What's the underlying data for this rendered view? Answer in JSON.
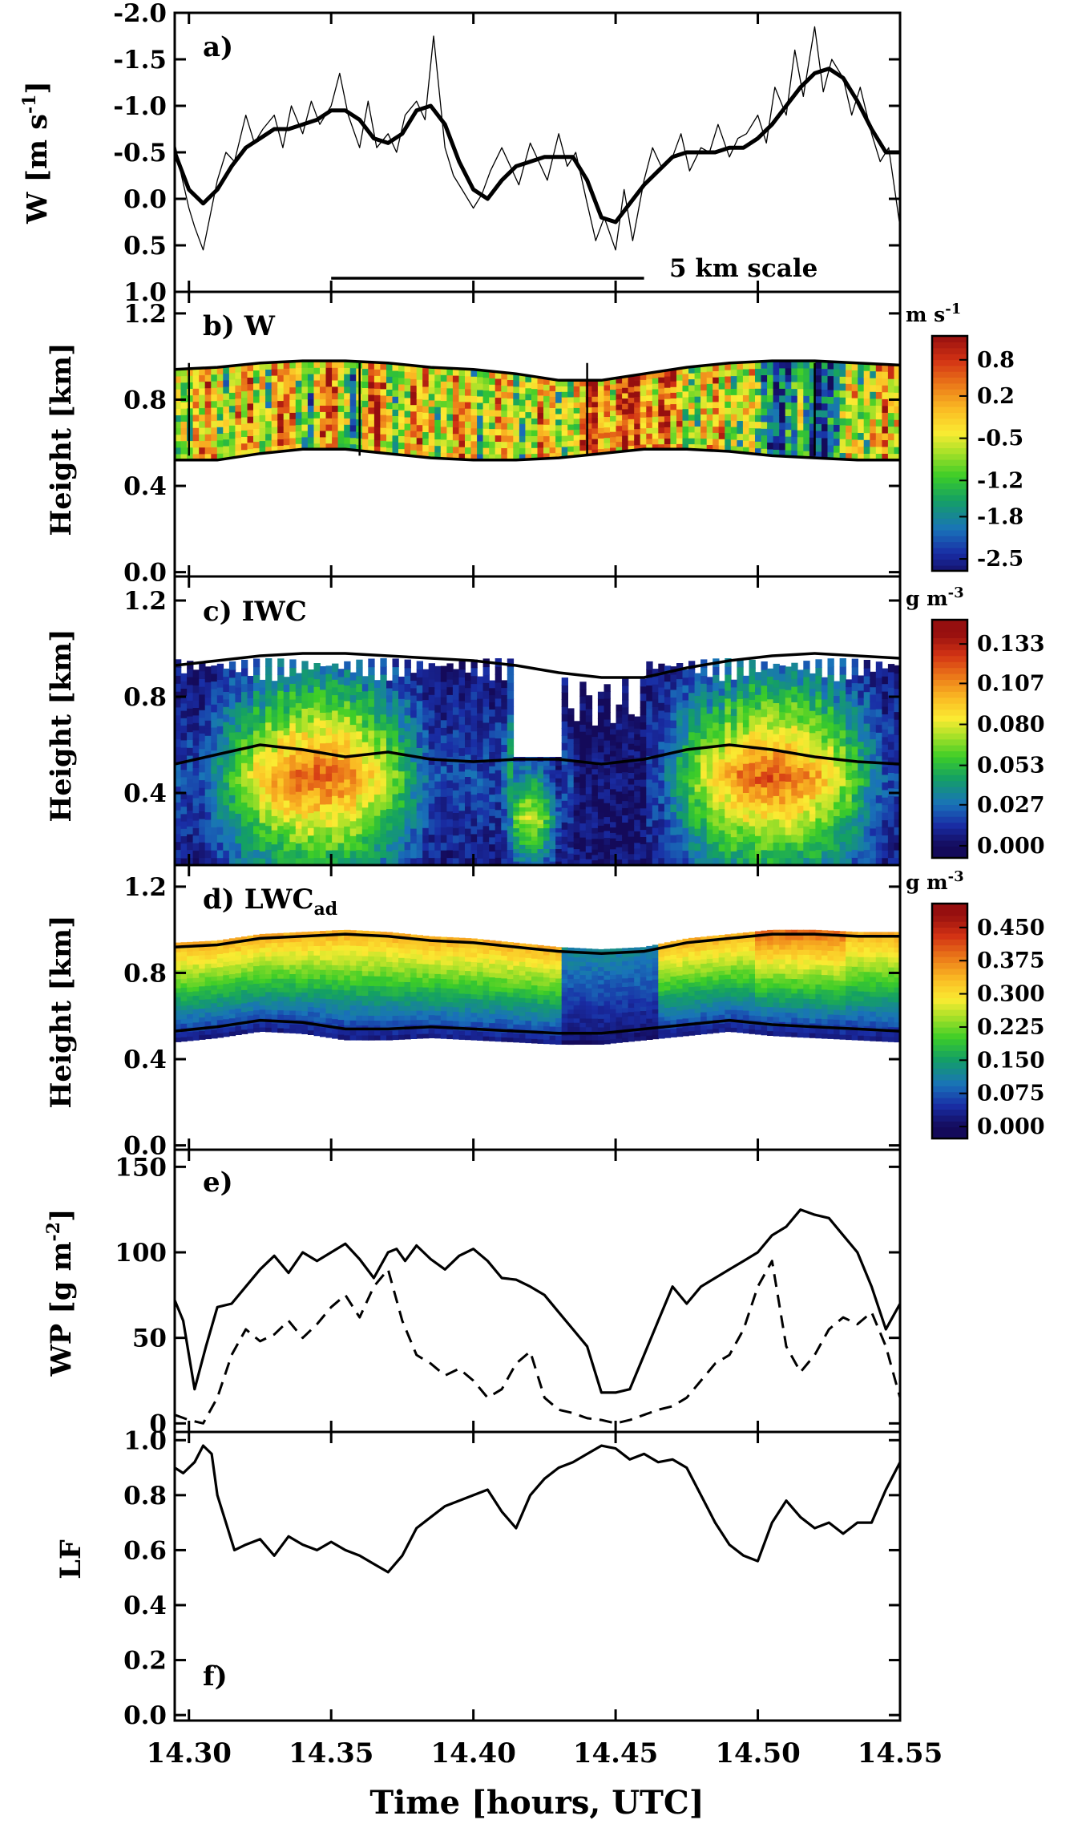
{
  "chart_data": [
    {
      "id": "a",
      "type": "line",
      "panel_label": "a)",
      "ylabel": "W [m s",
      "ylabel_sup": "-1",
      "ylabel_close": "]",
      "ylim": [
        1.0,
        -2.0
      ],
      "yticks": [
        -2.0,
        -1.5,
        -1.0,
        -0.5,
        0.0,
        0.5,
        1.0
      ],
      "ytick_labels": [
        "-2.0",
        "-1.5",
        "-1.0",
        "-0.5",
        "0.0",
        "0.5",
        "1.0"
      ],
      "scale_text": "5 km scale",
      "scale_bar_x": [
        14.35,
        14.46
      ],
      "series": [
        {
          "style": "smoothed-thick",
          "x": [
            14.295,
            14.3,
            14.305,
            14.31,
            14.315,
            14.32,
            14.325,
            14.33,
            14.335,
            14.34,
            14.345,
            14.35,
            14.355,
            14.36,
            14.365,
            14.37,
            14.375,
            14.38,
            14.385,
            14.39,
            14.395,
            14.4,
            14.405,
            14.41,
            14.415,
            14.42,
            14.425,
            14.43,
            14.435,
            14.44,
            14.445,
            14.45,
            14.455,
            14.46,
            14.465,
            14.47,
            14.475,
            14.48,
            14.485,
            14.49,
            14.495,
            14.5,
            14.505,
            14.51,
            14.515,
            14.52,
            14.525,
            14.53,
            14.535,
            14.54,
            14.545,
            14.55
          ],
          "y": [
            -0.5,
            -0.1,
            0.05,
            -0.1,
            -0.35,
            -0.55,
            -0.65,
            -0.75,
            -0.75,
            -0.8,
            -0.85,
            -0.95,
            -0.95,
            -0.85,
            -0.65,
            -0.6,
            -0.7,
            -0.95,
            -1.0,
            -0.8,
            -0.4,
            -0.1,
            0.0,
            -0.2,
            -0.35,
            -0.4,
            -0.45,
            -0.45,
            -0.45,
            -0.2,
            0.2,
            0.25,
            0.05,
            -0.15,
            -0.3,
            -0.45,
            -0.5,
            -0.5,
            -0.5,
            -0.55,
            -0.55,
            -0.65,
            -0.8,
            -1.0,
            -1.2,
            -1.35,
            -1.4,
            -1.3,
            -1.05,
            -0.75,
            -0.5,
            -0.5
          ]
        },
        {
          "style": "raw-thin",
          "x": [
            14.295,
            14.297,
            14.3,
            14.302,
            14.305,
            14.308,
            14.31,
            14.313,
            14.316,
            14.32,
            14.323,
            14.326,
            14.33,
            14.333,
            14.336,
            14.34,
            14.343,
            14.346,
            14.35,
            14.353,
            14.356,
            14.36,
            14.363,
            14.366,
            14.37,
            14.373,
            14.376,
            14.38,
            14.383,
            14.386,
            14.39,
            14.393,
            14.396,
            14.4,
            14.403,
            14.406,
            14.41,
            14.413,
            14.416,
            14.42,
            14.423,
            14.426,
            14.43,
            14.433,
            14.436,
            14.44,
            14.443,
            14.446,
            14.45,
            14.453,
            14.456,
            14.46,
            14.463,
            14.466,
            14.47,
            14.473,
            14.476,
            14.48,
            14.483,
            14.486,
            14.49,
            14.493,
            14.496,
            14.5,
            14.503,
            14.506,
            14.51,
            14.513,
            14.516,
            14.52,
            14.523,
            14.526,
            14.53,
            14.533,
            14.536,
            14.54,
            14.543,
            14.546,
            14.55
          ],
          "y": [
            -0.6,
            -0.3,
            0.1,
            0.3,
            0.55,
            0.1,
            -0.2,
            -0.5,
            -0.4,
            -0.9,
            -0.6,
            -0.75,
            -0.9,
            -0.55,
            -1.0,
            -0.7,
            -1.05,
            -0.8,
            -1.0,
            -1.35,
            -0.9,
            -0.55,
            -1.05,
            -0.55,
            -0.7,
            -0.5,
            -0.9,
            -1.05,
            -0.85,
            -1.75,
            -0.55,
            -0.25,
            -0.1,
            0.1,
            -0.05,
            -0.3,
            -0.55,
            -0.35,
            -0.15,
            -0.6,
            -0.4,
            -0.2,
            -0.7,
            -0.35,
            -0.5,
            0.05,
            0.45,
            0.2,
            0.55,
            -0.1,
            0.45,
            -0.2,
            -0.55,
            -0.35,
            -0.45,
            -0.7,
            -0.3,
            -0.55,
            -0.5,
            -0.8,
            -0.45,
            -0.65,
            -0.7,
            -0.9,
            -0.6,
            -1.2,
            -0.9,
            -1.6,
            -1.1,
            -1.85,
            -1.15,
            -1.5,
            -1.3,
            -0.9,
            -1.2,
            -0.7,
            -0.4,
            -0.55,
            0.3
          ]
        }
      ]
    },
    {
      "id": "b",
      "type": "heatmap",
      "panel_label": "b) W",
      "ylabel": "Height [km]",
      "ylim": [
        -0.02,
        1.3
      ],
      "yticks": [
        0.0,
        0.4,
        0.8,
        1.2
      ],
      "ytick_labels": [
        "0.0",
        "0.4",
        "0.8",
        "1.2"
      ],
      "value_range": [
        -2.8,
        1.2
      ],
      "colorbar": {
        "unit": "m s",
        "unit_sup": "-1",
        "labels": [
          "0.8",
          "0.2",
          "-0.5",
          "-1.2",
          "-1.8",
          "-2.5"
        ],
        "values": [
          0.8,
          0.2,
          -0.5,
          -1.2,
          -1.8,
          -2.5
        ]
      },
      "top_boundary": [
        0.94,
        0.95,
        0.97,
        0.98,
        0.98,
        0.97,
        0.95,
        0.94,
        0.92,
        0.89,
        0.89,
        0.92,
        0.95,
        0.97,
        0.98,
        0.98,
        0.97,
        0.96
      ],
      "bottom_boundary": [
        0.52,
        0.52,
        0.55,
        0.57,
        0.57,
        0.55,
        0.53,
        0.52,
        0.52,
        0.53,
        0.55,
        0.57,
        0.57,
        0.56,
        0.54,
        0.53,
        0.52,
        0.52
      ],
      "boundary_x": [
        14.295,
        14.31,
        14.325,
        14.34,
        14.355,
        14.37,
        14.385,
        14.4,
        14.415,
        14.43,
        14.445,
        14.46,
        14.475,
        14.49,
        14.505,
        14.52,
        14.535,
        14.55
      ]
    },
    {
      "id": "c",
      "type": "heatmap",
      "panel_label": "c) IWC",
      "ylabel": "Height [km]",
      "ylim": [
        0.1,
        1.3
      ],
      "yticks": [
        0.4,
        0.8,
        1.2
      ],
      "ytick_labels": [
        "0.4",
        "0.8",
        "1.2"
      ],
      "value_range": [
        0.0,
        0.14
      ],
      "colorbar": {
        "unit": "g m",
        "unit_sup": "-3",
        "labels": [
          "0.133",
          "0.107",
          "0.080",
          "0.053",
          "0.027",
          "0.000"
        ],
        "values": [
          0.133,
          0.107,
          0.08,
          0.053,
          0.027,
          0.0
        ]
      },
      "top_line": [
        0.93,
        0.95,
        0.97,
        0.98,
        0.98,
        0.97,
        0.96,
        0.95,
        0.93,
        0.9,
        0.88,
        0.88,
        0.92,
        0.95,
        0.97,
        0.98,
        0.97,
        0.96
      ],
      "base_line": [
        0.52,
        0.56,
        0.6,
        0.58,
        0.55,
        0.57,
        0.54,
        0.53,
        0.54,
        0.54,
        0.52,
        0.54,
        0.58,
        0.6,
        0.58,
        0.55,
        0.53,
        0.52
      ],
      "line_x": [
        14.295,
        14.31,
        14.325,
        14.34,
        14.355,
        14.37,
        14.385,
        14.4,
        14.415,
        14.43,
        14.445,
        14.46,
        14.475,
        14.49,
        14.505,
        14.52,
        14.535,
        14.55
      ]
    },
    {
      "id": "d",
      "type": "heatmap",
      "panel_label": "d) LWC",
      "panel_label_sub": "ad",
      "ylabel": "Height [km]",
      "ylim": [
        -0.02,
        1.3
      ],
      "yticks": [
        0.0,
        0.4,
        0.8,
        1.2
      ],
      "ytick_labels": [
        "0.0",
        "0.4",
        "0.8",
        "1.2"
      ],
      "value_range": [
        0.0,
        0.48
      ],
      "colorbar": {
        "unit": "g m",
        "unit_sup": "-3",
        "labels": [
          "0.450",
          "0.375",
          "0.300",
          "0.225",
          "0.150",
          "0.075",
          "0.000"
        ],
        "values": [
          0.45,
          0.375,
          0.3,
          0.225,
          0.15,
          0.075,
          0.0
        ]
      },
      "top_boundary": [
        0.92,
        0.93,
        0.96,
        0.97,
        0.98,
        0.97,
        0.95,
        0.94,
        0.92,
        0.9,
        0.89,
        0.9,
        0.94,
        0.96,
        0.98,
        0.98,
        0.97,
        0.97
      ],
      "bottom_boundary": [
        0.53,
        0.55,
        0.58,
        0.57,
        0.54,
        0.54,
        0.55,
        0.54,
        0.53,
        0.52,
        0.52,
        0.54,
        0.56,
        0.58,
        0.56,
        0.55,
        0.54,
        0.53
      ],
      "boundary_x": [
        14.295,
        14.31,
        14.325,
        14.34,
        14.355,
        14.37,
        14.385,
        14.4,
        14.415,
        14.43,
        14.445,
        14.46,
        14.475,
        14.49,
        14.505,
        14.52,
        14.535,
        14.55
      ]
    },
    {
      "id": "e",
      "type": "line",
      "panel_label": "e)",
      "ylabel": "WP [g m",
      "ylabel_sup": "-2",
      "ylabel_close": "]",
      "ylim": [
        -5,
        160
      ],
      "yticks": [
        0,
        50,
        100,
        150
      ],
      "ytick_labels": [
        "0",
        "50",
        "100",
        "150"
      ],
      "series": [
        {
          "style": "solid",
          "x": [
            14.295,
            14.298,
            14.302,
            14.306,
            14.31,
            14.315,
            14.32,
            14.325,
            14.33,
            14.335,
            14.34,
            14.345,
            14.35,
            14.355,
            14.36,
            14.365,
            14.37,
            14.373,
            14.376,
            14.38,
            14.385,
            14.39,
            14.395,
            14.4,
            14.405,
            14.41,
            14.415,
            14.42,
            14.425,
            14.43,
            14.435,
            14.44,
            14.445,
            14.45,
            14.455,
            14.46,
            14.465,
            14.47,
            14.475,
            14.48,
            14.485,
            14.49,
            14.495,
            14.5,
            14.505,
            14.51,
            14.515,
            14.52,
            14.525,
            14.53,
            14.535,
            14.54,
            14.545,
            14.55
          ],
          "y": [
            72,
            60,
            20,
            45,
            68,
            70,
            80,
            90,
            98,
            88,
            100,
            95,
            100,
            105,
            96,
            85,
            100,
            102,
            95,
            104,
            96,
            90,
            98,
            102,
            95,
            85,
            84,
            80,
            75,
            65,
            55,
            45,
            18,
            18,
            20,
            40,
            60,
            80,
            70,
            80,
            85,
            90,
            95,
            100,
            110,
            115,
            125,
            122,
            120,
            110,
            100,
            80,
            55,
            70
          ]
        },
        {
          "style": "dashed",
          "x": [
            14.295,
            14.3,
            14.305,
            14.31,
            14.315,
            14.32,
            14.325,
            14.33,
            14.335,
            14.34,
            14.345,
            14.35,
            14.355,
            14.36,
            14.365,
            14.37,
            14.375,
            14.38,
            14.385,
            14.39,
            14.395,
            14.4,
            14.405,
            14.41,
            14.415,
            14.42,
            14.425,
            14.43,
            14.435,
            14.44,
            14.445,
            14.45,
            14.455,
            14.46,
            14.465,
            14.47,
            14.475,
            14.48,
            14.485,
            14.49,
            14.495,
            14.5,
            14.505,
            14.51,
            14.515,
            14.52,
            14.525,
            14.53,
            14.535,
            14.54,
            14.545,
            14.55
          ],
          "y": [
            5,
            2,
            0,
            15,
            40,
            55,
            48,
            52,
            60,
            50,
            58,
            68,
            75,
            62,
            80,
            90,
            60,
            40,
            35,
            28,
            32,
            25,
            15,
            20,
            35,
            42,
            15,
            8,
            6,
            3,
            2,
            0,
            2,
            5,
            8,
            10,
            15,
            25,
            35,
            40,
            55,
            80,
            95,
            45,
            30,
            40,
            55,
            62,
            58,
            65,
            45,
            15
          ]
        }
      ]
    },
    {
      "id": "f",
      "type": "line",
      "panel_label": "f)",
      "ylabel": "LF",
      "ylim": [
        -0.02,
        1.03
      ],
      "yticks": [
        0.0,
        0.2,
        0.4,
        0.6,
        0.8,
        1.0
      ],
      "ytick_labels": [
        "0.0",
        "0.2",
        "0.4",
        "0.6",
        "0.8",
        "1.0"
      ],
      "series": [
        {
          "style": "solid",
          "x": [
            14.295,
            14.298,
            14.302,
            14.305,
            14.308,
            14.31,
            14.313,
            14.316,
            14.32,
            14.325,
            14.33,
            14.335,
            14.34,
            14.345,
            14.35,
            14.355,
            14.36,
            14.365,
            14.37,
            14.375,
            14.38,
            14.385,
            14.39,
            14.395,
            14.4,
            14.405,
            14.41,
            14.415,
            14.42,
            14.425,
            14.43,
            14.435,
            14.44,
            14.445,
            14.45,
            14.455,
            14.46,
            14.465,
            14.47,
            14.475,
            14.48,
            14.485,
            14.49,
            14.495,
            14.5,
            14.505,
            14.51,
            14.515,
            14.52,
            14.525,
            14.53,
            14.535,
            14.54,
            14.545,
            14.55
          ],
          "y": [
            0.9,
            0.88,
            0.92,
            0.98,
            0.95,
            0.8,
            0.7,
            0.6,
            0.62,
            0.64,
            0.58,
            0.65,
            0.62,
            0.6,
            0.63,
            0.6,
            0.58,
            0.55,
            0.52,
            0.58,
            0.68,
            0.72,
            0.76,
            0.78,
            0.8,
            0.82,
            0.74,
            0.68,
            0.8,
            0.86,
            0.9,
            0.92,
            0.95,
            0.98,
            0.97,
            0.93,
            0.95,
            0.92,
            0.93,
            0.9,
            0.8,
            0.7,
            0.62,
            0.58,
            0.56,
            0.7,
            0.78,
            0.72,
            0.68,
            0.7,
            0.66,
            0.7,
            0.7,
            0.82,
            0.92
          ]
        }
      ]
    }
  ],
  "x_axis": {
    "label": "Time [hours, UTC]",
    "xlim": [
      14.295,
      14.55
    ],
    "ticks": [
      14.3,
      14.35,
      14.4,
      14.45,
      14.5,
      14.55
    ],
    "tick_labels": [
      "14.30",
      "14.35",
      "14.40",
      "14.45",
      "14.50",
      "14.55"
    ]
  }
}
